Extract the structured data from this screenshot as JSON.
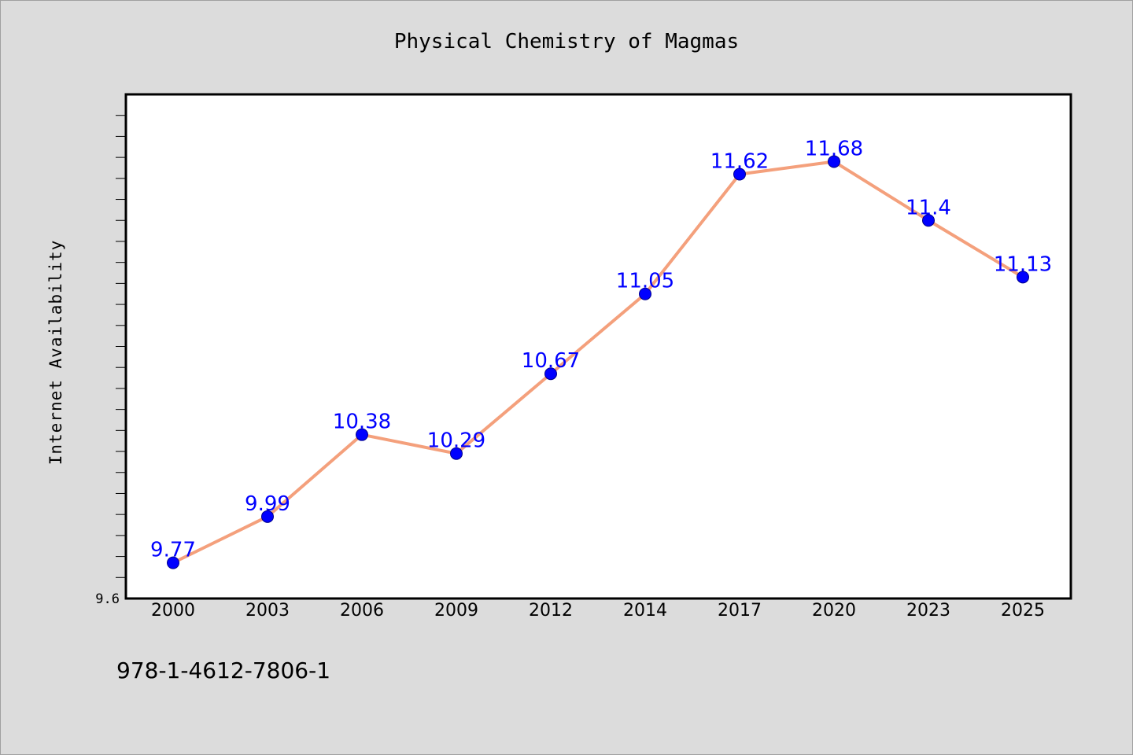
{
  "chart_data": {
    "type": "line",
    "title": "Physical Chemistry of Magmas",
    "xlabel": "",
    "ylabel": "Internet Availability",
    "categories": [
      "2000",
      "2003",
      "2006",
      "2009",
      "2012",
      "2014",
      "2017",
      "2020",
      "2023",
      "2025"
    ],
    "values": [
      9.77,
      9.99,
      10.38,
      10.29,
      10.67,
      11.05,
      11.62,
      11.68,
      11.4,
      11.13
    ],
    "data_labels": [
      "9.77",
      "9.99",
      "10.38",
      "10.29",
      "10.67",
      "11.05",
      "11.62",
      "11.68",
      "11.4",
      "11.13"
    ],
    "ylim": [
      9.6,
      12.0
    ],
    "y_tick_labels": [
      "9.6"
    ],
    "grid": false,
    "line_color": "#f4a07c",
    "marker_color": "#0000ff",
    "label_color": "#0000ff",
    "plot_background": "#ffffff",
    "figure_background": "#dcdcdc"
  },
  "footnote": "978-1-4612-7806-1"
}
